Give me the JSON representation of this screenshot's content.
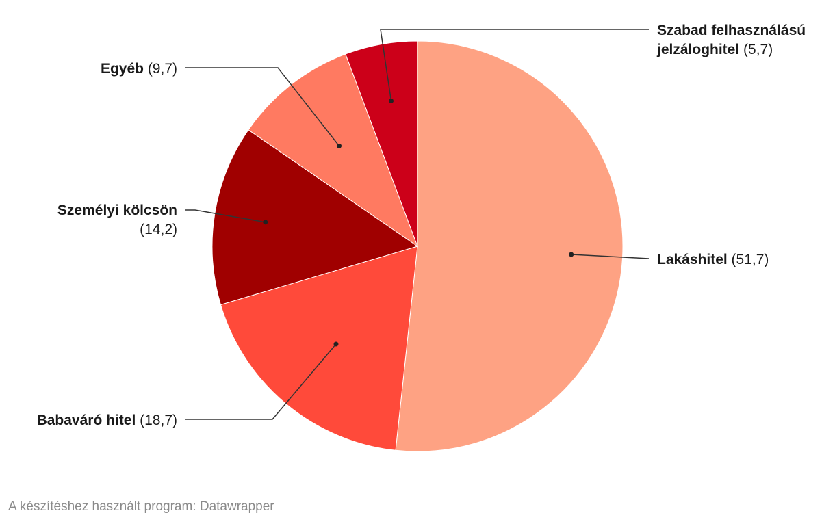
{
  "chart_data": {
    "type": "pie",
    "title": "",
    "slices": [
      {
        "label_lines": [
          "Lakáshitel"
        ],
        "value": 51.7,
        "value_label": "(51,7)",
        "color": "#fea283"
      },
      {
        "label_lines": [
          "Babaváró hitel"
        ],
        "value": 18.7,
        "value_label": "(18,7)",
        "color": "#ff4a3a"
      },
      {
        "label_lines": [
          "Személyi kölcsön"
        ],
        "value": 14.2,
        "value_label": "(14,2)",
        "color": "#a00000"
      },
      {
        "label_lines": [
          "Egyéb"
        ],
        "value": 9.7,
        "value_label": "(9,7)",
        "color": "#ff7a61"
      },
      {
        "label_lines": [
          "Szabad felhasználású",
          "jelzáloghitel"
        ],
        "value": 5.7,
        "value_label": "(5,7)",
        "color": "#cc0019"
      }
    ]
  },
  "footer": {
    "credit": "A készítéshez használt program: Datawrapper"
  }
}
